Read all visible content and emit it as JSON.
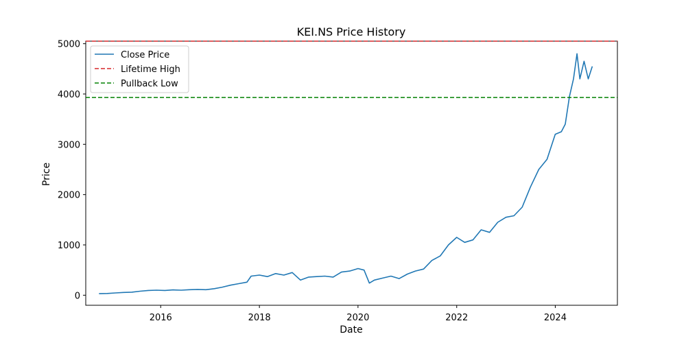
{
  "chart_data": {
    "type": "line",
    "title": "KEI.NS Price History",
    "xlabel": "Date",
    "ylabel": "Price",
    "xlim": [
      "2014-06-25",
      "2025-04-05"
    ],
    "ylim": [
      -200,
      5050
    ],
    "x_ticks": [
      "2016",
      "2018",
      "2020",
      "2022",
      "2024"
    ],
    "y_ticks": [
      0,
      1000,
      2000,
      3000,
      4000,
      5000
    ],
    "grid": false,
    "legend_position": "upper-left",
    "series": [
      {
        "name": "Close Price",
        "color": "#1f77b4",
        "style": "solid",
        "points": [
          [
            "2014-10-01",
            30
          ],
          [
            "2014-12-01",
            35
          ],
          [
            "2015-02-01",
            45
          ],
          [
            "2015-04-01",
            55
          ],
          [
            "2015-06-01",
            60
          ],
          [
            "2015-08-01",
            80
          ],
          [
            "2015-10-01",
            95
          ],
          [
            "2015-12-01",
            100
          ],
          [
            "2016-02-01",
            95
          ],
          [
            "2016-04-01",
            105
          ],
          [
            "2016-06-01",
            100
          ],
          [
            "2016-08-01",
            110
          ],
          [
            "2016-10-01",
            115
          ],
          [
            "2016-12-01",
            110
          ],
          [
            "2017-02-01",
            130
          ],
          [
            "2017-04-01",
            160
          ],
          [
            "2017-06-01",
            200
          ],
          [
            "2017-08-01",
            230
          ],
          [
            "2017-10-01",
            260
          ],
          [
            "2017-11-01",
            380
          ],
          [
            "2018-01-01",
            400
          ],
          [
            "2018-03-01",
            370
          ],
          [
            "2018-05-01",
            430
          ],
          [
            "2018-07-01",
            400
          ],
          [
            "2018-09-01",
            450
          ],
          [
            "2018-11-01",
            300
          ],
          [
            "2019-01-01",
            360
          ],
          [
            "2019-03-01",
            370
          ],
          [
            "2019-05-01",
            380
          ],
          [
            "2019-07-01",
            360
          ],
          [
            "2019-09-01",
            460
          ],
          [
            "2019-11-01",
            480
          ],
          [
            "2020-01-01",
            530
          ],
          [
            "2020-02-15",
            500
          ],
          [
            "2020-03-25",
            240
          ],
          [
            "2020-05-01",
            300
          ],
          [
            "2020-07-01",
            340
          ],
          [
            "2020-09-01",
            380
          ],
          [
            "2020-11-01",
            330
          ],
          [
            "2021-01-01",
            420
          ],
          [
            "2021-03-01",
            480
          ],
          [
            "2021-05-01",
            520
          ],
          [
            "2021-07-01",
            690
          ],
          [
            "2021-09-01",
            780
          ],
          [
            "2021-11-01",
            1000
          ],
          [
            "2022-01-01",
            1150
          ],
          [
            "2022-03-01",
            1050
          ],
          [
            "2022-05-01",
            1100
          ],
          [
            "2022-07-01",
            1300
          ],
          [
            "2022-09-01",
            1250
          ],
          [
            "2022-11-01",
            1450
          ],
          [
            "2023-01-01",
            1550
          ],
          [
            "2023-03-01",
            1580
          ],
          [
            "2023-05-01",
            1750
          ],
          [
            "2023-07-01",
            2150
          ],
          [
            "2023-09-01",
            2500
          ],
          [
            "2023-11-01",
            2700
          ],
          [
            "2024-01-01",
            3200
          ],
          [
            "2024-02-15",
            3250
          ],
          [
            "2024-03-15",
            3400
          ],
          [
            "2024-04-15",
            3950
          ],
          [
            "2024-05-15",
            4300
          ],
          [
            "2024-06-10",
            4800
          ],
          [
            "2024-07-01",
            4300
          ],
          [
            "2024-08-01",
            4650
          ],
          [
            "2024-09-01",
            4300
          ],
          [
            "2024-10-01",
            4550
          ]
        ]
      },
      {
        "name": "Lifetime High",
        "color": "#d62728",
        "style": "dashed",
        "constant": 5050
      },
      {
        "name": "Pullback Low",
        "color": "#008000",
        "style": "dashed",
        "constant": 3930
      }
    ]
  }
}
